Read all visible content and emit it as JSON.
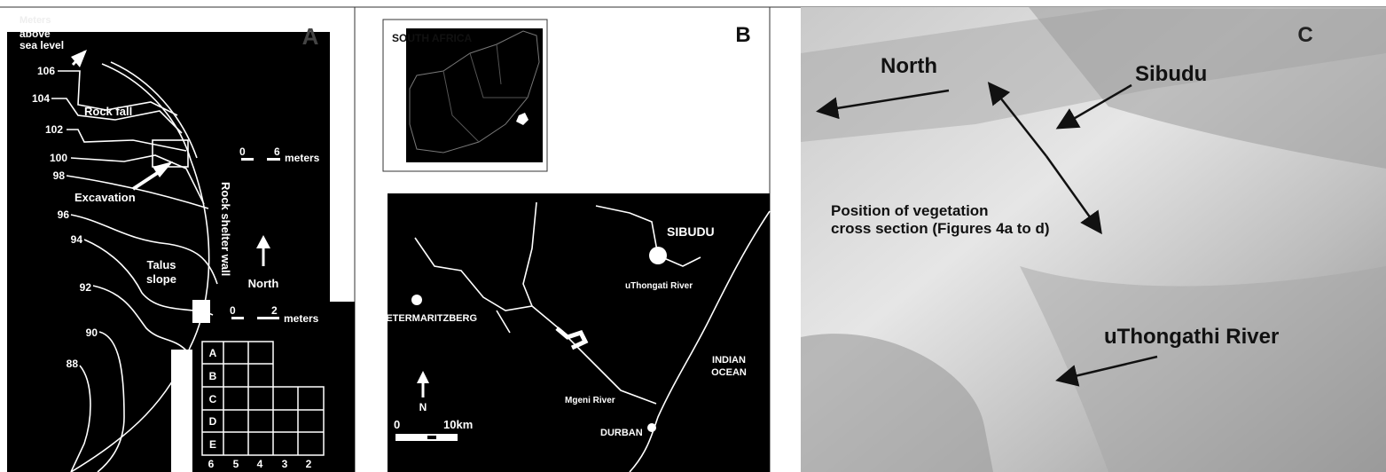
{
  "panel_a": {
    "label": "A",
    "elevation_caption": [
      "Meters",
      "above",
      "sea level"
    ],
    "contours": [
      "106",
      "104",
      "102",
      "100",
      "98",
      "96",
      "94",
      "92",
      "90",
      "88"
    ],
    "rock_fall": "Rock fall",
    "excavation": "Excavation",
    "talus": [
      "Talus",
      "slope"
    ],
    "wall": "Rock shelter wall",
    "north": "North",
    "scale_large": {
      "start": "0",
      "end": "6",
      "unit": "meters"
    },
    "scale_small": {
      "start": "0",
      "end": "2",
      "unit": "meters"
    },
    "grid_rows": [
      "A",
      "B",
      "C",
      "D",
      "E"
    ],
    "grid_columns": [
      "6",
      "5",
      "4",
      "3",
      "2"
    ]
  },
  "panel_b": {
    "label": "B",
    "inset_title": "SOUTH AFRICA",
    "sibudu": "SIBUDU",
    "uthongati": "uThongati River",
    "pietermaritzburg": "PETERMARITZBERG",
    "ocean": [
      "INDIAN",
      "OCEAN"
    ],
    "north": "N",
    "scale": {
      "start": "0",
      "end": "10km"
    },
    "mgeni": "Mgeni River",
    "durban": "DURBAN"
  },
  "panel_c": {
    "label": "C",
    "north": "North",
    "sibudu": "Sibudu",
    "position": [
      "Position of vegetation",
      "cross section (Figures 4a to d)"
    ],
    "river": "uThongathi River"
  }
}
